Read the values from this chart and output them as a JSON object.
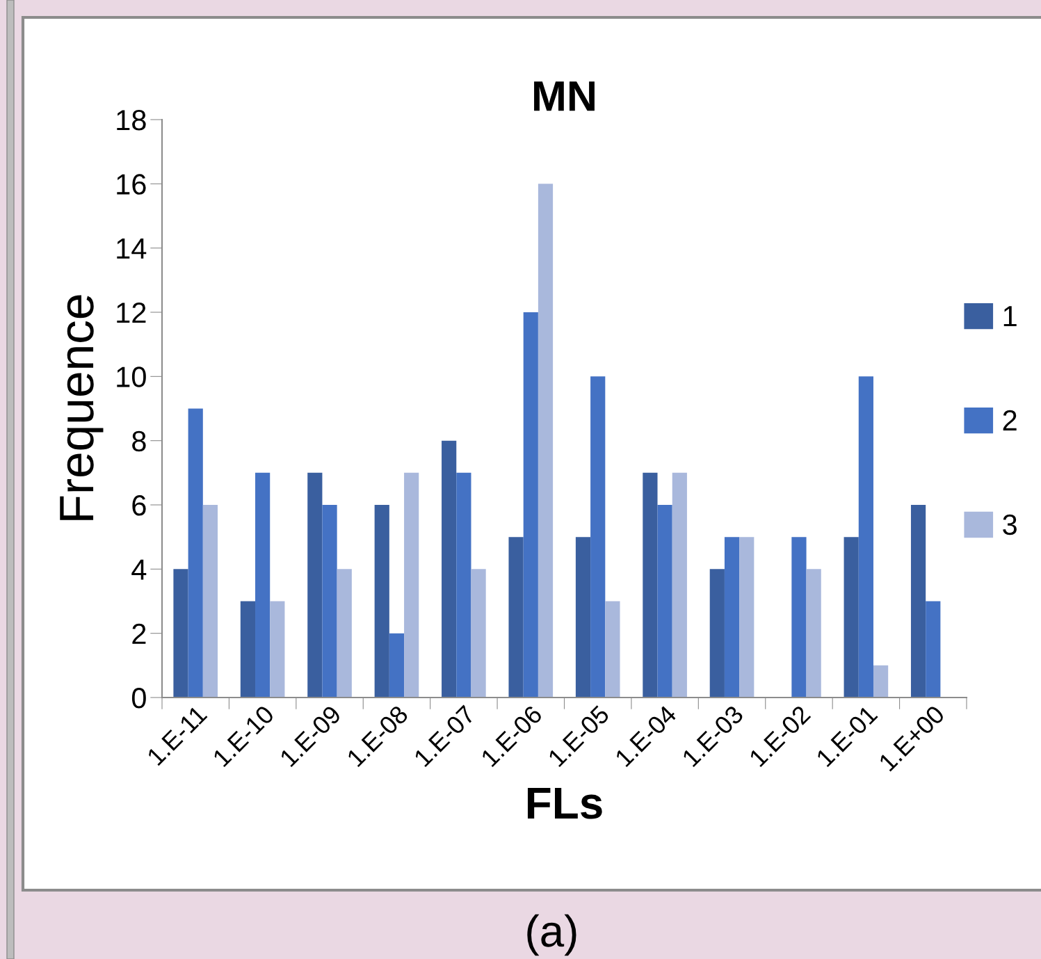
{
  "chart_data": {
    "type": "bar",
    "title": "MN",
    "xlabel": "FLs",
    "ylabel": "Frequence",
    "categories": [
      "1.E-11",
      "1.E-10",
      "1.E-09",
      "1.E-08",
      "1.E-07",
      "1.E-06",
      "1.E-05",
      "1.E-04",
      "1.E-03",
      "1.E-02",
      "1.E-01",
      "1.E+00"
    ],
    "series": [
      {
        "name": "1",
        "color": "#3a5f9f",
        "values": [
          4,
          3,
          7,
          6,
          8,
          5,
          5,
          7,
          4,
          0,
          5,
          6
        ]
      },
      {
        "name": "2",
        "color": "#4472c4",
        "values": [
          9,
          7,
          6,
          2,
          7,
          12,
          10,
          6,
          5,
          5,
          10,
          3
        ]
      },
      {
        "name": "3",
        "color": "#a9b8dc",
        "values": [
          6,
          3,
          4,
          7,
          4,
          16,
          3,
          7,
          5,
          4,
          1,
          0
        ]
      }
    ],
    "ylim": [
      0,
      18
    ],
    "yticks": [
      0,
      2,
      4,
      6,
      8,
      10,
      12,
      14,
      16,
      18
    ],
    "grid": false,
    "legend": "right",
    "annotations": [
      "(a)"
    ]
  }
}
